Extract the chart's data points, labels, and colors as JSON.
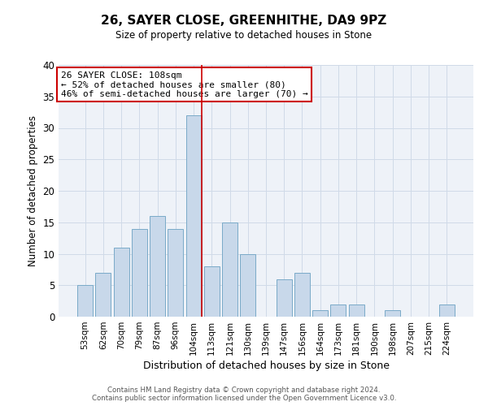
{
  "title": "26, SAYER CLOSE, GREENHITHE, DA9 9PZ",
  "subtitle": "Size of property relative to detached houses in Stone",
  "xlabel": "Distribution of detached houses by size in Stone",
  "ylabel": "Number of detached properties",
  "bar_color": "#c8d8ea",
  "bar_edge_color": "#7aaac8",
  "grid_color": "#d0dae8",
  "background_color": "#eef2f8",
  "annotation_box_color": "#cc0000",
  "marker_line_color": "#cc0000",
  "categories": [
    "53sqm",
    "62sqm",
    "70sqm",
    "79sqm",
    "87sqm",
    "96sqm",
    "104sqm",
    "113sqm",
    "121sqm",
    "130sqm",
    "139sqm",
    "147sqm",
    "156sqm",
    "164sqm",
    "173sqm",
    "181sqm",
    "190sqm",
    "198sqm",
    "207sqm",
    "215sqm",
    "224sqm"
  ],
  "values": [
    5,
    7,
    11,
    14,
    16,
    14,
    32,
    8,
    15,
    10,
    0,
    6,
    7,
    1,
    2,
    2,
    0,
    1,
    0,
    0,
    2
  ],
  "property_bin_index": 6,
  "annotation_line1": "26 SAYER CLOSE: 108sqm",
  "annotation_line2": "← 52% of detached houses are smaller (80)",
  "annotation_line3": "46% of semi-detached houses are larger (70) →",
  "ylim": [
    0,
    40
  ],
  "yticks": [
    0,
    5,
    10,
    15,
    20,
    25,
    30,
    35,
    40
  ],
  "footer_line1": "Contains HM Land Registry data © Crown copyright and database right 2024.",
  "footer_line2": "Contains public sector information licensed under the Open Government Licence v3.0."
}
